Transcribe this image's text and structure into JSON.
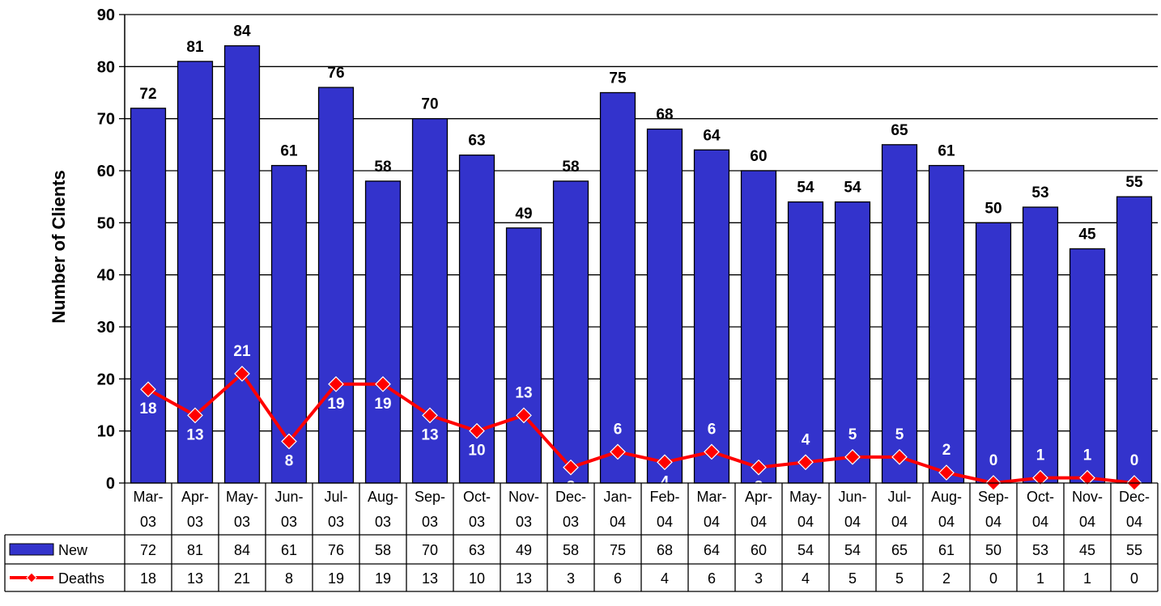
{
  "chart_data": {
    "type": "bar",
    "ylabel": "Number of Clients",
    "ylim": [
      0,
      90
    ],
    "ytick_step": 10,
    "grid": true,
    "legend": "data-table",
    "categories": [
      "Mar-03",
      "Apr-03",
      "May-03",
      "Jun-03",
      "Jul-03",
      "Aug-03",
      "Sep-03",
      "Oct-03",
      "Nov-03",
      "Dec-03",
      "Jan-04",
      "Feb-04",
      "Mar-04",
      "Apr-04",
      "May-04",
      "Jun-04",
      "Jul-04",
      "Aug-04",
      "Sep-04",
      "Oct-04",
      "Nov-04",
      "Dec-04"
    ],
    "series": [
      {
        "name": "New",
        "kind": "bar",
        "color": "#3333cc",
        "values": [
          72,
          81,
          84,
          61,
          76,
          58,
          70,
          63,
          49,
          58,
          75,
          68,
          64,
          60,
          54,
          54,
          65,
          61,
          50,
          53,
          45,
          55
        ]
      },
      {
        "name": "Deaths",
        "kind": "line",
        "color": "#ff0000",
        "values": [
          18,
          13,
          21,
          8,
          19,
          19,
          13,
          10,
          13,
          3,
          6,
          4,
          6,
          3,
          4,
          5,
          5,
          2,
          0,
          1,
          1,
          0
        ]
      }
    ]
  }
}
